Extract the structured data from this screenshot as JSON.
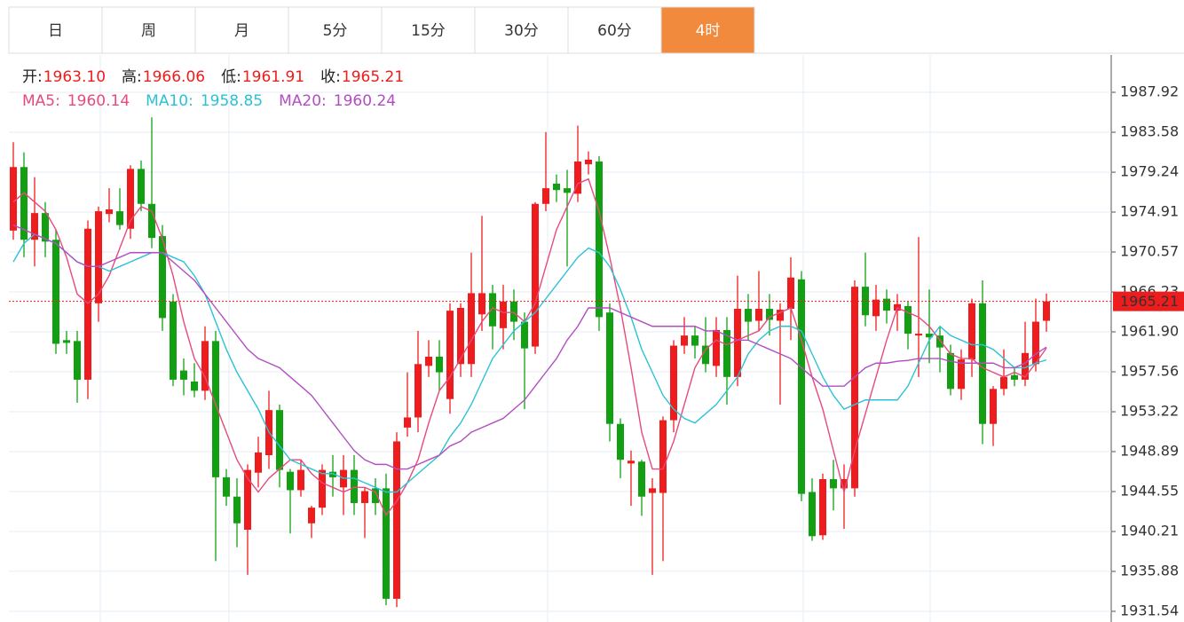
{
  "tabs": [
    "日",
    "周",
    "月",
    "5分",
    "15分",
    "30分",
    "60分",
    "4时"
  ],
  "active_tab": 7,
  "chart_data": {
    "type": "candlestick",
    "ohlc_legend": [
      {
        "label": "开:",
        "value": "1963.10"
      },
      {
        "label": "高:",
        "value": "1966.06"
      },
      {
        "label": "低:",
        "value": "1961.91"
      },
      {
        "label": "收:",
        "value": "1965.21"
      }
    ],
    "up_color": "#ee1c1c",
    "down_color": "#12a012",
    "open": [
      1972.9,
      1979.8,
      1971.9,
      1974.8,
      1971.9,
      1961,
      1960.9,
      1956.7,
      1965,
      1974.7,
      1975,
      1973.1,
      1979.6,
      1975.8,
      1972.3,
      1965.2,
      1957.7,
      1956.5,
      1955.5,
      1960.9,
      1946.1,
      1944,
      1940.4,
      1946.6,
      1948.5,
      1953.4,
      1946.7,
      1944.7,
      1941.1,
      1942.8,
      1946.7,
      1945,
      1946.9,
      1943.3,
      1944.9,
      1944.9,
      1932.9,
      1951.5,
      1952.6,
      1958.2,
      1959.2,
      1954.6,
      1958.4,
      1958.4,
      1963.8,
      1966.1,
      1962.3,
      1965.2,
      1963,
      1960.3,
      1975.8,
      1978,
      1977.5,
      1976.9,
      1980.1,
      1980.4,
      1964,
      1951.9,
      1947.6,
      1947.8,
      1944.4,
      1944.4,
      1952.3,
      1960.4,
      1961.5,
      1960.4,
      1958.2,
      1962.1,
      1957,
      1964.4,
      1963.1,
      1964.4,
      1963.1,
      1964.4,
      1967.6,
      1944.5,
      1939.8,
      1945.9,
      1944.9,
      1944.9,
      1966.8,
      1963.6,
      1965.5,
      1964.2,
      1964.7,
      1961.5,
      1961.7,
      1961.5,
      1959.6,
      1955.7,
      1958.9,
      1965,
      1951.9,
      1955.7,
      1957.2,
      1956.7,
      1958.4,
      1963.1
    ],
    "high": [
      1982.5,
      1981.4,
      1978.7,
      1976,
      1973,
      1962,
      1962,
      1974,
      1975.5,
      1977.5,
      1977.5,
      1980,
      1980.5,
      1985.2,
      1973.5,
      1966,
      1959,
      1958.5,
      1962.5,
      1962,
      1947,
      1946,
      1947.5,
      1950.5,
      1955.5,
      1954,
      1947,
      1948,
      1943,
      1947.5,
      1948.5,
      1948.5,
      1948.5,
      1945,
      1946,
      1946.5,
      1951,
      1957.5,
      1962,
      1961,
      1961,
      1965,
      1965,
      1970.5,
      1974.5,
      1967,
      1967,
      1966.5,
      1964,
      1976,
      1983.6,
      1979,
      1979.5,
      1984.3,
      1981.5,
      1981,
      1965,
      1952.5,
      1949,
      1948,
      1946,
      1952.7,
      1961,
      1963.5,
      1962.5,
      1963.5,
      1963.5,
      1963.5,
      1968,
      1966,
      1968.5,
      1966,
      1965,
      1970,
      1968.5,
      1946,
      1946.5,
      1948,
      1947.5,
      1967.5,
      1970.5,
      1967,
      1966.5,
      1966,
      1965.2,
      1972.2,
      1966.5,
      1962.5,
      1960.5,
      1960,
      1965.5,
      1967.5,
      1956,
      1960,
      1958,
      1963,
      1965.5,
      1966.06
    ],
    "low": [
      1971.9,
      1970,
      1969,
      1970,
      1959.5,
      1959.5,
      1954.2,
      1954.6,
      1963,
      1973.8,
      1973,
      1972,
      1975,
      1971,
      1962,
      1956,
      1955,
      1954.8,
      1954.5,
      1937,
      1943,
      1938.5,
      1935.5,
      1945,
      1947,
      1945,
      1940,
      1944,
      1939.5,
      1942,
      1944,
      1942,
      1942,
      1939.5,
      1942,
      1932.2,
      1932,
      1950.5,
      1951,
      1957,
      1955.5,
      1953,
      1957,
      1957,
      1962,
      1960,
      1960,
      1961,
      1953.5,
      1959.5,
      1975,
      1976,
      1969,
      1976,
      1979,
      1962,
      1950,
      1946,
      1943,
      1941.9,
      1935.5,
      1937,
      1951,
      1959.5,
      1959,
      1957.5,
      1957,
      1954,
      1956,
      1961,
      1962,
      1961.5,
      1954,
      1961,
      1943.5,
      1939.2,
      1939.3,
      1942.5,
      1940.5,
      1944,
      1962.5,
      1962,
      1962.8,
      1962,
      1960,
      1957,
      1958.5,
      1957.5,
      1955,
      1954.5,
      1957,
      1949.7,
      1949.5,
      1955,
      1956,
      1956,
      1957.6,
      1961.91
    ],
    "close": [
      1979.8,
      1971.9,
      1974.8,
      1971.7,
      1960.6,
      1960.7,
      1956.7,
      1973.1,
      1975,
      1975.2,
      1973.5,
      1979.6,
      1975.8,
      1972.1,
      1963.4,
      1956.7,
      1956.7,
      1955.5,
      1960.9,
      1946.1,
      1944,
      1941.1,
      1946.9,
      1948.8,
      1953.4,
      1946.9,
      1944.7,
      1946.9,
      1942.8,
      1946.9,
      1946.1,
      1946.9,
      1943.3,
      1944.6,
      1943.3,
      1932.9,
      1950,
      1952.6,
      1958.4,
      1959.2,
      1957.5,
      1964.2,
      1964.5,
      1966.1,
      1966.1,
      1962.5,
      1965.2,
      1963,
      1960.1,
      1975.8,
      1977.5,
      1977.3,
      1977,
      1980.4,
      1980.6,
      1963.5,
      1951.9,
      1948,
      1947.9,
      1944,
      1944.9,
      1952.3,
      1960.4,
      1961.5,
      1960.4,
      1958.4,
      1962.1,
      1957,
      1964.4,
      1963,
      1964.4,
      1963.2,
      1964.3,
      1967.8,
      1944.3,
      1939.7,
      1945.9,
      1944.9,
      1945.9,
      1966.8,
      1963.7,
      1965.4,
      1964.2,
      1964.9,
      1961.7,
      1961.7,
      1961.3,
      1960.2,
      1955.7,
      1958.9,
      1965,
      1951.9,
      1955.7,
      1957,
      1956.7,
      1959.6,
      1963,
      1965.21
    ],
    "ma_series": [
      {
        "name": "MA5:",
        "color": "#e64a7e",
        "last_label": "1960.14",
        "values": [
          1976,
          1977,
          1976,
          1975,
          1973,
          1970,
          1966,
          1965,
          1966,
          1968,
          1971,
          1974,
          1975.5,
          1975,
          1972,
          1968,
          1963,
          1959,
          1957,
          1954,
          1951,
          1948,
          1946,
          1944.5,
          1946,
          1947,
          1948,
          1948,
          1946.5,
          1945.5,
          1945,
          1944.5,
          1945,
          1945,
          1944.5,
          1942,
          1943.5,
          1945.5,
          1948,
          1952,
          1955.5,
          1957,
          1959,
          1961,
          1963,
          1964.5,
          1964,
          1964,
          1963,
          1965,
          1969,
          1973,
          1975.5,
          1978,
          1978.5,
          1975,
          1970,
          1964.5,
          1958,
          1951,
          1947,
          1947,
          1950,
          1954,
          1958,
          1960,
          1961,
          1960.5,
          1961,
          1961.5,
          1962,
          1963.5,
          1964,
          1964.5,
          1961,
          1957,
          1953.5,
          1949,
          1944.5,
          1949,
          1953,
          1957,
          1961,
          1964.5,
          1964,
          1963.5,
          1962.5,
          1961,
          1959.5,
          1959,
          1959,
          1958,
          1957.5,
          1957,
          1957.5,
          1957,
          1958.5,
          1960.14
        ]
      },
      {
        "name": "MA10:",
        "color": "#2cc2d6",
        "last_label": "1958.85",
        "values": [
          1969.5,
          1971.5,
          1972.5,
          1972,
          1971.5,
          1970.5,
          1969.5,
          1969,
          1969,
          1968.5,
          1969,
          1969.5,
          1970,
          1970.5,
          1970.5,
          1970,
          1969.5,
          1968,
          1966,
          1963,
          1960,
          1957.5,
          1955.5,
          1953.5,
          1951,
          1949.5,
          1948,
          1947.5,
          1947,
          1946.5,
          1946.5,
          1946,
          1946,
          1945.5,
          1945,
          1944.5,
          1944.5,
          1945.5,
          1946.5,
          1947.5,
          1948.5,
          1950.5,
          1952,
          1954,
          1956.5,
          1959,
          1960.5,
          1962,
          1963,
          1964,
          1965.5,
          1967,
          1968.5,
          1970,
          1971,
          1970.5,
          1969,
          1966.5,
          1963.5,
          1960,
          1957.5,
          1955,
          1953.5,
          1952.5,
          1952,
          1953,
          1954,
          1955.5,
          1957,
          1959.5,
          1961,
          1962,
          1962.5,
          1962.5,
          1962,
          1959.5,
          1957,
          1955,
          1953.5,
          1954,
          1954.5,
          1954.5,
          1954.5,
          1954.5,
          1956,
          1958.5,
          1961,
          1962.5,
          1961.5,
          1961,
          1960.5,
          1960.5,
          1960,
          1959,
          1958,
          1958,
          1958.5,
          1958.85
        ]
      },
      {
        "name": "MA20:",
        "color": "#b24ec2",
        "last_label": "1960.24",
        "values": [
          1973.5,
          1973,
          1972.5,
          1972,
          1971.5,
          1970.5,
          1969.5,
          1969,
          1969,
          1969.5,
          1970,
          1970.5,
          1970.5,
          1970.5,
          1970.5,
          1969.5,
          1968.5,
          1967.5,
          1966,
          1964.5,
          1963,
          1961.5,
          1960,
          1959,
          1958.5,
          1958,
          1957,
          1956,
          1955,
          1953.5,
          1952,
          1950.5,
          1949,
          1948,
          1947.5,
          1947.5,
          1947,
          1947,
          1947.5,
          1948,
          1948.5,
          1949.5,
          1950,
          1951,
          1951.5,
          1952,
          1952.5,
          1953.5,
          1954.5,
          1956,
          1957.5,
          1959,
          1961,
          1962.5,
          1964.5,
          1964.5,
          1964.5,
          1964,
          1963.5,
          1963,
          1962.5,
          1962.5,
          1962.5,
          1962.5,
          1962.5,
          1962,
          1962,
          1961.5,
          1961,
          1961,
          1960.5,
          1960,
          1959.5,
          1959,
          1958,
          1957,
          1956,
          1956,
          1956,
          1957,
          1958,
          1958.5,
          1958.5,
          1958.7,
          1958.8,
          1959,
          1959,
          1959,
          1958.7,
          1958.5,
          1958.5,
          1958.5,
          1958.5,
          1958,
          1958,
          1958.5,
          1959.5,
          1960.24
        ]
      }
    ],
    "last_price": 1965.21,
    "ylim": [
      1930.38,
      1991.97
    ],
    "yticks": [
      1987.92,
      1983.58,
      1979.24,
      1974.91,
      1970.57,
      1966.23,
      {
        "value": 1961.9,
        "label": "1961.90"
      },
      1957.56,
      1953.22,
      1948.89,
      1944.55,
      1940.21,
      1935.88,
      1931.54
    ],
    "grid": true
  }
}
